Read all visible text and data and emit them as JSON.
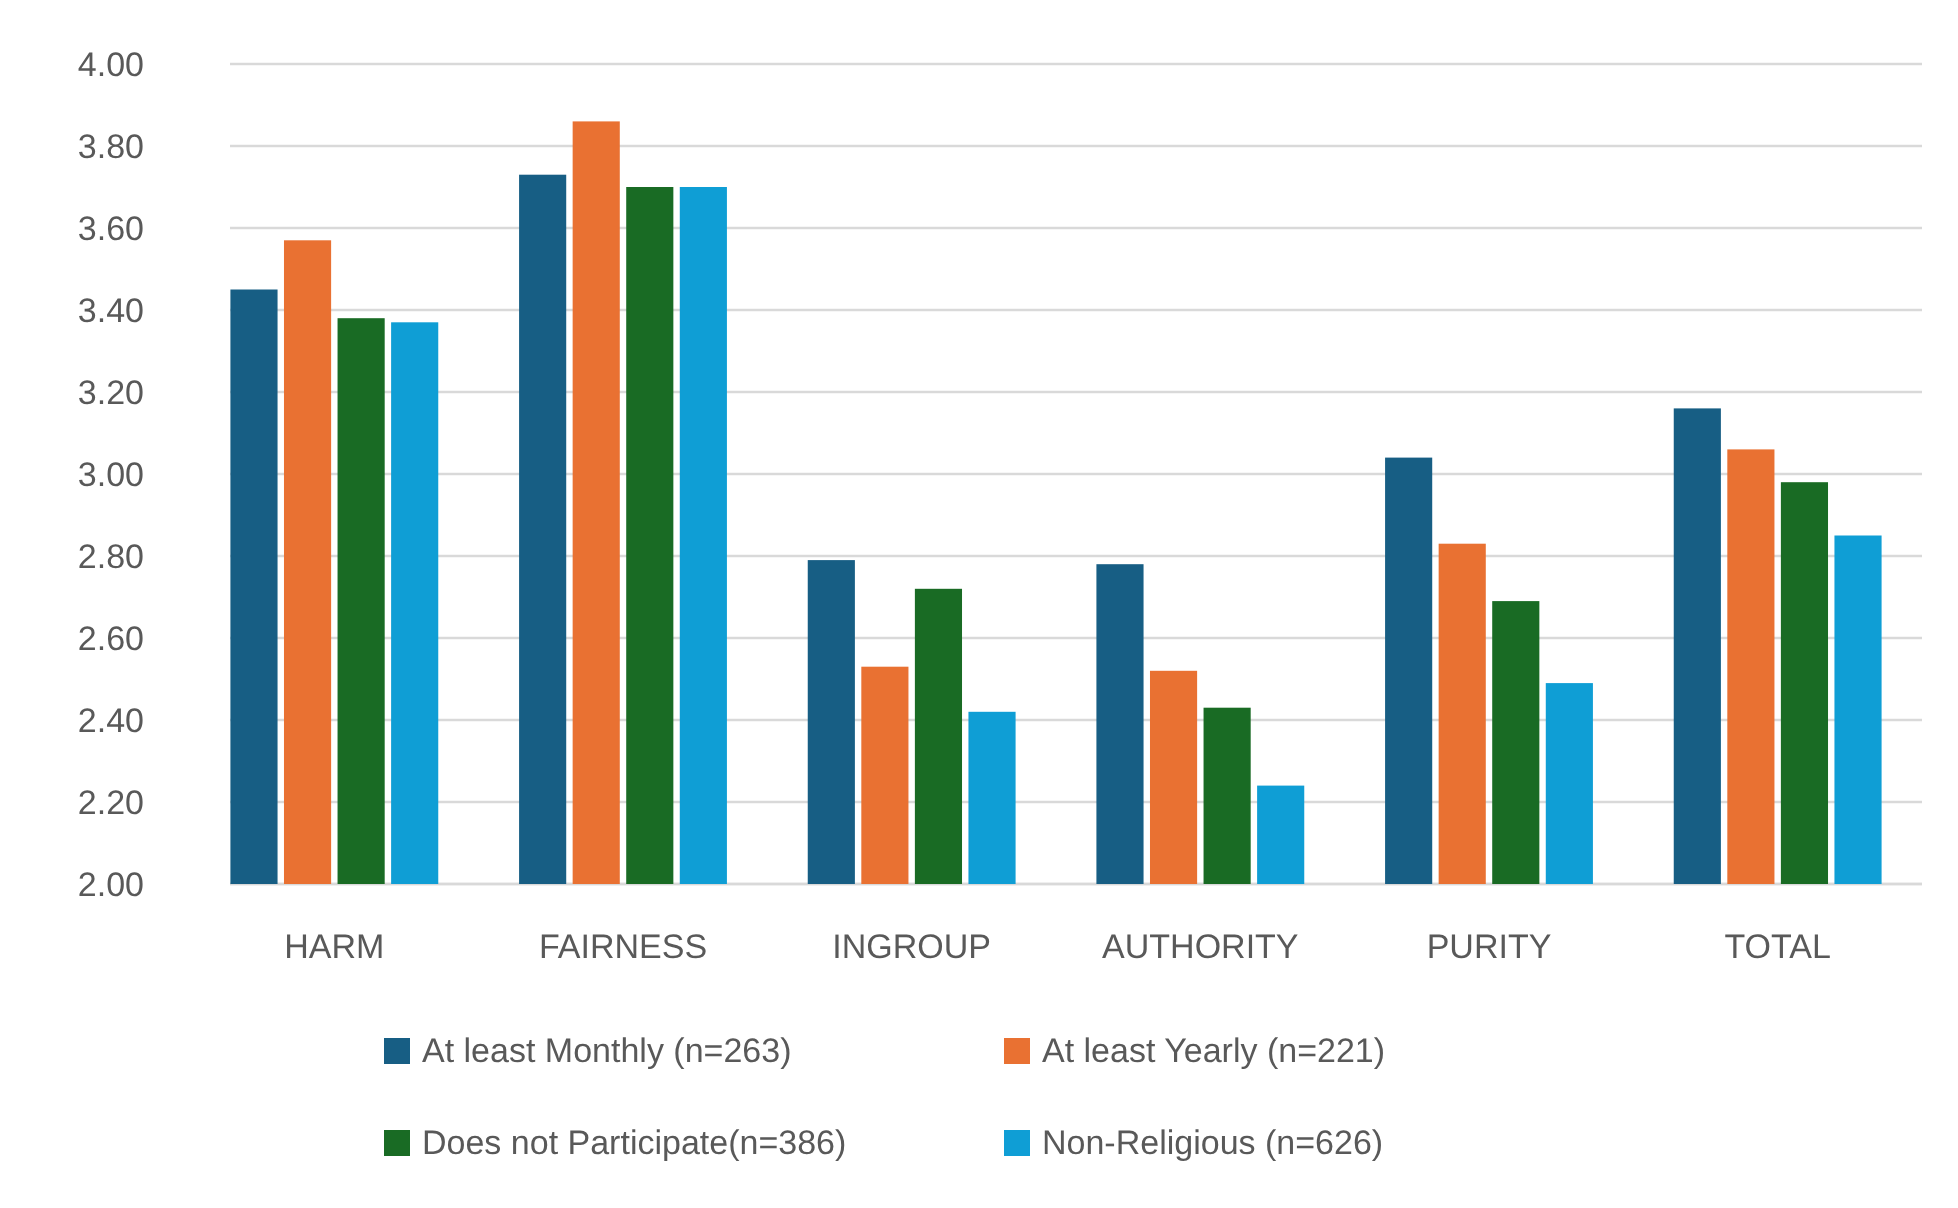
{
  "chart_data": {
    "type": "bar",
    "categories": [
      "HARM",
      "FAIRNESS",
      "INGROUP",
      "AUTHORITY",
      "PURITY",
      "TOTAL"
    ],
    "series": [
      {
        "name": "At least Monthly (n=263)",
        "color": "#175e84",
        "values": [
          3.45,
          3.73,
          2.79,
          2.78,
          3.04,
          3.16
        ]
      },
      {
        "name": "At least Yearly (n=221)",
        "color": "#e97132",
        "values": [
          3.57,
          3.86,
          2.53,
          2.52,
          2.83,
          3.06
        ]
      },
      {
        "name": "Does not Participate(n=386)",
        "color": "#196b24",
        "values": [
          3.38,
          3.7,
          2.72,
          2.43,
          2.69,
          2.98
        ]
      },
      {
        "name": "Non-Religious (n=626)",
        "color": "#0f9ed5",
        "values": [
          3.37,
          3.7,
          2.42,
          2.24,
          2.49,
          2.85
        ]
      }
    ],
    "ylim": [
      2,
      4
    ],
    "yticks": [
      {
        "value": 2,
        "label": "2.00"
      },
      {
        "value": 2.2,
        "label": "2.20"
      },
      {
        "value": 2.4,
        "label": "2.40"
      },
      {
        "value": 2.6,
        "label": "2.60"
      },
      {
        "value": 2.8,
        "label": "2.80"
      },
      {
        "value": 3,
        "label": "3.00"
      },
      {
        "value": 3.2,
        "label": "3.20"
      },
      {
        "value": 3.4,
        "label": "3.40"
      },
      {
        "value": 3.6,
        "label": "3.60"
      },
      {
        "value": 3.8,
        "label": "3.80"
      },
      {
        "value": 4,
        "label": "4.00"
      }
    ],
    "grid": "y",
    "legend": "bottom"
  }
}
